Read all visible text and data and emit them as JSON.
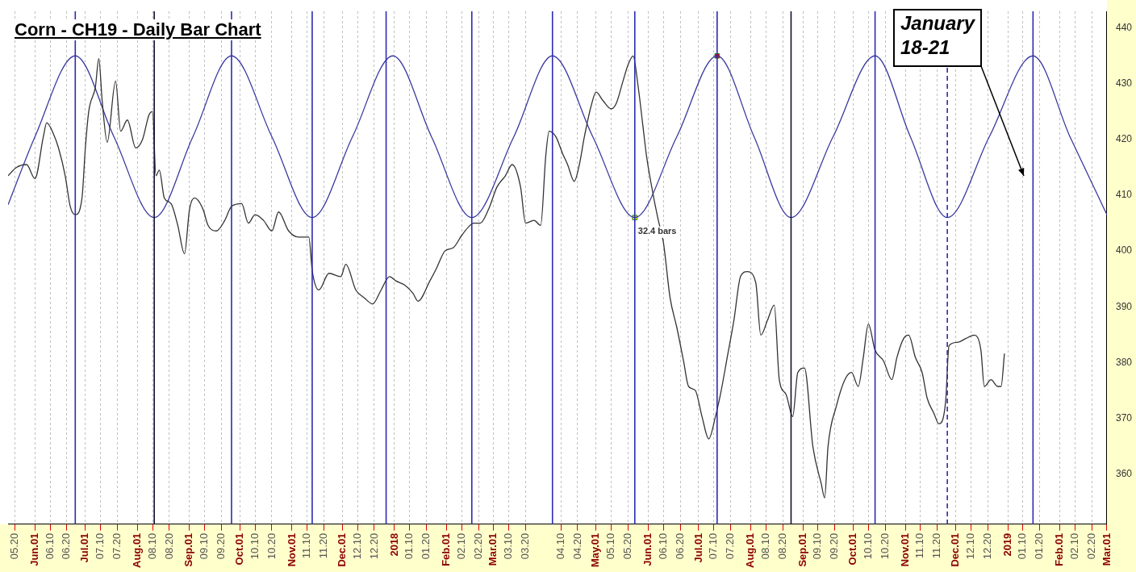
{
  "chart_data": {
    "type": "line",
    "title": "Corn - CH19 - Daily Bar Chart",
    "xlim": [
      "2017-05-16",
      "2019-03-01"
    ],
    "ylim": [
      351,
      443
    ],
    "yticks": [
      360,
      370,
      380,
      390,
      400,
      410,
      420,
      430,
      440
    ],
    "xticks": [
      {
        "value": "2017-05-20",
        "label": "05.20"
      },
      {
        "value": "2017-06-01",
        "label": "Jun.01"
      },
      {
        "value": "2017-06-10",
        "label": "06.10"
      },
      {
        "value": "2017-06-20",
        "label": "06.20"
      },
      {
        "value": "2017-07-01",
        "label": "Jul.01"
      },
      {
        "value": "2017-07-10",
        "label": "07.10"
      },
      {
        "value": "2017-07-20",
        "label": "07.20"
      },
      {
        "value": "2017-08-01",
        "label": "Aug.01"
      },
      {
        "value": "2017-08-10",
        "label": "08.10"
      },
      {
        "value": "2017-08-20",
        "label": "08.20"
      },
      {
        "value": "2017-09-01",
        "label": "Sep.01"
      },
      {
        "value": "2017-09-10",
        "label": "09.10"
      },
      {
        "value": "2017-09-20",
        "label": "09.20"
      },
      {
        "value": "2017-10-01",
        "label": "Oct.01"
      },
      {
        "value": "2017-10-10",
        "label": "10.10"
      },
      {
        "value": "2017-10-20",
        "label": "10.20"
      },
      {
        "value": "2017-11-01",
        "label": "Nov.01"
      },
      {
        "value": "2017-11-10",
        "label": "11.10"
      },
      {
        "value": "2017-11-20",
        "label": "11.20"
      },
      {
        "value": "2017-12-01",
        "label": "Dec.01"
      },
      {
        "value": "2017-12-10",
        "label": "12.10"
      },
      {
        "value": "2017-12-20",
        "label": "12.20"
      },
      {
        "value": "2018-01-01",
        "label": "2018"
      },
      {
        "value": "2018-01-10",
        "label": "01.10"
      },
      {
        "value": "2018-01-20",
        "label": "01.20"
      },
      {
        "value": "2018-02-01",
        "label": "Feb.01"
      },
      {
        "value": "2018-02-10",
        "label": "02.10"
      },
      {
        "value": "2018-02-20",
        "label": "02.20"
      },
      {
        "value": "2018-03-01",
        "label": "Mar.01"
      },
      {
        "value": "2018-03-10",
        "label": "03.10"
      },
      {
        "value": "2018-03-20",
        "label": "03.20"
      },
      {
        "value": "2018-04-10",
        "label": "04.10"
      },
      {
        "value": "2018-04-20",
        "label": "04.20"
      },
      {
        "value": "2018-05-01",
        "label": "May.01"
      },
      {
        "value": "2018-05-10",
        "label": "05.10"
      },
      {
        "value": "2018-05-20",
        "label": "05.20"
      },
      {
        "value": "2018-06-01",
        "label": "Jun.01"
      },
      {
        "value": "2018-06-10",
        "label": "06.10"
      },
      {
        "value": "2018-06-20",
        "label": "06.20"
      },
      {
        "value": "2018-07-01",
        "label": "Jul.01"
      },
      {
        "value": "2018-07-10",
        "label": "07.10"
      },
      {
        "value": "2018-07-20",
        "label": "07.20"
      },
      {
        "value": "2018-08-01",
        "label": "Aug.01"
      },
      {
        "value": "2018-08-10",
        "label": "08.10"
      },
      {
        "value": "2018-08-20",
        "label": "08.20"
      },
      {
        "value": "2018-09-01",
        "label": "Sep.01"
      },
      {
        "value": "2018-09-10",
        "label": "09.10"
      },
      {
        "value": "2018-09-20",
        "label": "09.20"
      },
      {
        "value": "2018-10-01",
        "label": "Oct.01"
      },
      {
        "value": "2018-10-10",
        "label": "10.10"
      },
      {
        "value": "2018-10-20",
        "label": "10.20"
      },
      {
        "value": "2018-11-01",
        "label": "Nov.01"
      },
      {
        "value": "2018-11-10",
        "label": "11.10"
      },
      {
        "value": "2018-11-20",
        "label": "11.20"
      },
      {
        "value": "2018-12-01",
        "label": "Dec.01"
      },
      {
        "value": "2018-12-10",
        "label": "12.10"
      },
      {
        "value": "2018-12-20",
        "label": "12.20"
      },
      {
        "value": "2019-01-01",
        "label": "2019"
      },
      {
        "value": "2019-01-10",
        "label": "01.10"
      },
      {
        "value": "2019-01-20",
        "label": "01.20"
      },
      {
        "value": "2019-02-01",
        "label": "Feb.01"
      },
      {
        "value": "2019-02-10",
        "label": "02.10"
      },
      {
        "value": "2019-02-20",
        "label": "02.20"
      },
      {
        "value": "2019-03-01",
        "label": "Mar.01"
      }
    ],
    "grid": "x",
    "legend": false,
    "series": [
      {
        "color": "#333333",
        "x": [
          "2017-05-16",
          "2017-05-21",
          "2017-05-27",
          "2017-06-01",
          "2017-06-06",
          "2017-06-08",
          "2017-06-12",
          "2017-06-15",
          "2017-06-19",
          "2017-06-22",
          "2017-06-25",
          "2017-06-29",
          "2017-07-01",
          "2017-07-03",
          "2017-07-07",
          "2017-07-09",
          "2017-07-11",
          "2017-07-14",
          "2017-07-19",
          "2017-07-22",
          "2017-07-26",
          "2017-07-31",
          "2017-08-04",
          "2017-08-08",
          "2017-08-10",
          "2017-08-12",
          "2017-08-14",
          "2017-08-17",
          "2017-08-21",
          "2017-08-25",
          "2017-08-29",
          "2017-09-01",
          "2017-09-04",
          "2017-09-09",
          "2017-09-12",
          "2017-09-17",
          "2017-09-22",
          "2017-09-26",
          "2017-10-02",
          "2017-10-06",
          "2017-10-10",
          "2017-10-15",
          "2017-10-20",
          "2017-10-24",
          "2017-10-30",
          "2017-11-05",
          "2017-11-11",
          "2017-11-13",
          "2017-11-17",
          "2017-11-23",
          "2017-11-30",
          "2017-12-03",
          "2017-12-09",
          "2017-12-14",
          "2017-12-19",
          "2017-12-24",
          "2017-12-29",
          "2018-01-02",
          "2018-01-07",
          "2018-01-12",
          "2018-01-15",
          "2018-01-22",
          "2018-01-26",
          "2018-01-31",
          "2018-02-05",
          "2018-02-10",
          "2018-02-14",
          "2018-02-17",
          "2018-02-21",
          "2018-02-26",
          "2018-03-03",
          "2018-03-08",
          "2018-03-12",
          "2018-03-17",
          "2018-03-20",
          "2018-03-25",
          "2018-03-29",
          "2018-04-01",
          "2018-04-03",
          "2018-04-07",
          "2018-04-11",
          "2018-04-14",
          "2018-04-18",
          "2018-04-21",
          "2018-04-24",
          "2018-04-28",
          "2018-05-01",
          "2018-05-05",
          "2018-05-10",
          "2018-05-13",
          "2018-05-17",
          "2018-05-20",
          "2018-05-23",
          "2018-05-26",
          "2018-05-29",
          "2018-05-31",
          "2018-06-04",
          "2018-06-07",
          "2018-06-10",
          "2018-06-14",
          "2018-06-18",
          "2018-06-22",
          "2018-06-25",
          "2018-06-29",
          "2018-07-03",
          "2018-07-07",
          "2018-07-11",
          "2018-07-14",
          "2018-07-18",
          "2018-07-22",
          "2018-07-26",
          "2018-07-30",
          "2018-08-04",
          "2018-08-07",
          "2018-08-11",
          "2018-08-15",
          "2018-08-18",
          "2018-08-22",
          "2018-08-26",
          "2018-08-29",
          "2018-09-02",
          "2018-09-07",
          "2018-09-12",
          "2018-09-14",
          "2018-09-16",
          "2018-09-21",
          "2018-09-26",
          "2018-09-30",
          "2018-10-04",
          "2018-10-07",
          "2018-10-10",
          "2018-10-14",
          "2018-10-19",
          "2018-10-24",
          "2018-10-27",
          "2018-10-31",
          "2018-11-03",
          "2018-11-07",
          "2018-11-11",
          "2018-11-14",
          "2018-11-18",
          "2018-11-21",
          "2018-11-25",
          "2018-11-27",
          "2018-12-02",
          "2018-12-07",
          "2018-12-12",
          "2018-12-16",
          "2018-12-18",
          "2018-12-22",
          "2018-12-26",
          "2018-12-28",
          "2018-12-30"
        ],
        "values": [
          413.5,
          415,
          415.5,
          413,
          420.5,
          423,
          421,
          418.5,
          413.5,
          408,
          406.5,
          409.5,
          418.5,
          425,
          429.5,
          434.5,
          427,
          419.5,
          430.5,
          421.5,
          423.5,
          418.5,
          420,
          424.5,
          425,
          413.5,
          414.5,
          409.5,
          408.5,
          404.6,
          399.5,
          407.5,
          409.5,
          407.5,
          404.6,
          403.6,
          405.5,
          408,
          408.5,
          405,
          406.5,
          405.5,
          403.6,
          407,
          403.6,
          402.5,
          402.5,
          396.5,
          393,
          396,
          395.4,
          397.6,
          393,
          391.6,
          390.5,
          393,
          395.4,
          394.6,
          393.9,
          392.4,
          391,
          394.6,
          396.9,
          400,
          400.6,
          402.8,
          404.3,
          405,
          405,
          407.5,
          411.5,
          413.5,
          415.5,
          411.5,
          405,
          405.5,
          404.6,
          417,
          421.5,
          420.5,
          417.5,
          415.5,
          412.5,
          415.5,
          420.5,
          426,
          428.5,
          427,
          425.5,
          426.5,
          430.5,
          433.4,
          435,
          429.5,
          422,
          417,
          410,
          405.5,
          401.6,
          391.6,
          386.3,
          380.3,
          375.7,
          375,
          370.3,
          366.3,
          370.3,
          374.3,
          380.9,
          387.6,
          395.5,
          396.3,
          394.3,
          384.9,
          387.6,
          390.3,
          376.9,
          374.3,
          370.3,
          378.2,
          379,
          364.9,
          358.2,
          355.7,
          364.9,
          372.2,
          376.9,
          378.2,
          375.7,
          380.9,
          386.9,
          382.2,
          380.3,
          376.9,
          380.9,
          384.3,
          384.9,
          380.9,
          378.2,
          373.6,
          370.9,
          369,
          373,
          383,
          383.6,
          384.3,
          384.9,
          382.2,
          375.7,
          376.9,
          375.7,
          375.7,
          381.6
        ]
      },
      {
        "color": "#3a3aa0",
        "x": [
          "2017-05-16",
          "2017-06-01",
          "2017-06-25",
          "2017-07-18",
          "2017-08-11",
          "2017-09-03",
          "2017-09-26",
          "2017-10-20",
          "2017-11-13",
          "2017-12-07",
          "2017-12-31",
          "2018-01-23",
          "2018-02-16",
          "2018-03-13",
          "2018-04-05",
          "2018-04-29",
          "2018-05-24",
          "2018-06-18",
          "2018-07-12",
          "2018-08-03",
          "2018-08-25",
          "2018-09-19",
          "2018-10-14",
          "2018-11-04",
          "2018-11-26",
          "2018-12-21",
          "2019-01-16",
          "2019-02-07",
          "2019-03-01"
        ],
        "values": [
          408.3,
          420.5,
          435,
          420.5,
          406,
          420.5,
          435,
          420.5,
          406,
          420.5,
          435,
          420.5,
          406,
          420.5,
          435,
          420.5,
          406,
          420.5,
          435,
          420.5,
          406,
          420.5,
          435,
          420.5,
          406,
          420.5,
          435,
          420.5,
          406.5
        ]
      },
      {
        "type": "scatter",
        "marker": "square",
        "x": [
          "2018-05-24",
          "2018-07-12"
        ],
        "values": [
          406,
          435
        ],
        "colors": [
          "#e8e800",
          "#e00000"
        ]
      }
    ],
    "ref_lines": [
      {
        "axis": "x",
        "value": "2017-06-25",
        "color": "#2b2bb0"
      },
      {
        "axis": "x",
        "value": "2017-08-11",
        "color": "#111133"
      },
      {
        "axis": "x",
        "value": "2017-09-26",
        "color": "#2b2bb0"
      },
      {
        "axis": "x",
        "value": "2017-11-13",
        "color": "#2b2bb0"
      },
      {
        "axis": "x",
        "value": "2017-12-27",
        "color": "#2b2bb0"
      },
      {
        "axis": "x",
        "value": "2018-02-16",
        "color": "#2b2bb0"
      },
      {
        "axis": "x",
        "value": "2018-04-05",
        "color": "#2b2bb0"
      },
      {
        "axis": "x",
        "value": "2018-05-24",
        "color": "#2b2bb0"
      },
      {
        "axis": "x",
        "value": "2018-07-12",
        "color": "#2b2bb0"
      },
      {
        "axis": "x",
        "value": "2018-08-25",
        "color": "#111133"
      },
      {
        "axis": "x",
        "value": "2018-10-14",
        "color": "#2b2bb0"
      },
      {
        "axis": "x",
        "value": "2018-11-26",
        "color": "#2b2bb0",
        "line_style": "dashed"
      },
      {
        "axis": "x",
        "value": "2019-01-16",
        "color": "#2b2bb0"
      }
    ],
    "annotations": [
      {
        "text": "32.4 bars",
        "x": "2018-05-24",
        "y": 406
      },
      "January 18-21"
    ]
  }
}
